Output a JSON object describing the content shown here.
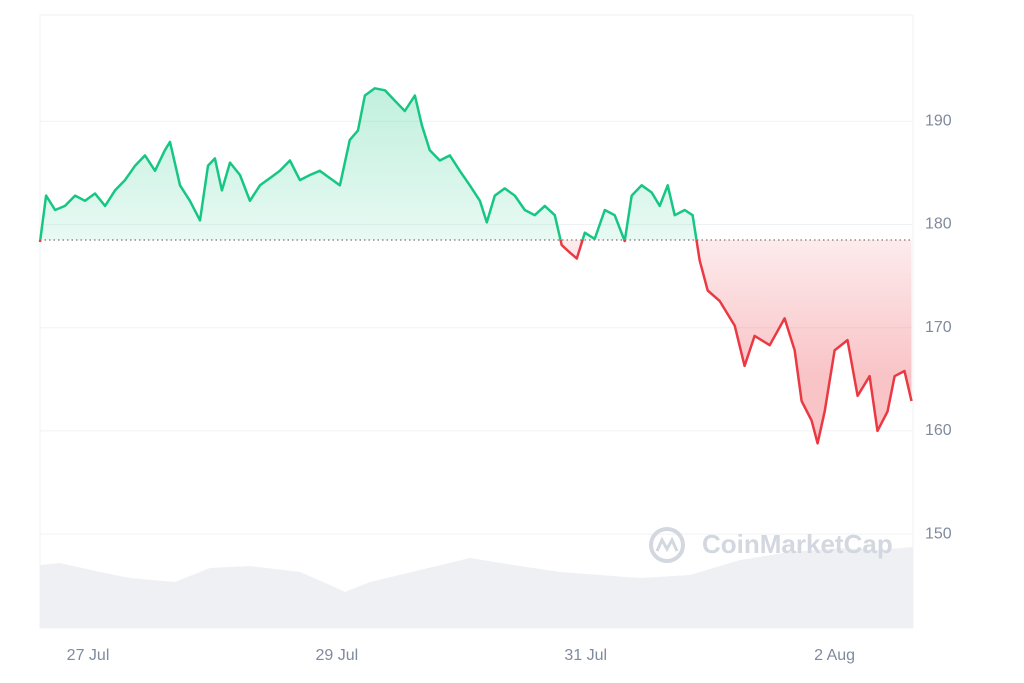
{
  "chart_data": {
    "type": "line",
    "watermark": "CoinMarketCap",
    "up_color": "#16c784",
    "down_color": "#ea3943",
    "baseline": 178.5,
    "grid": true,
    "xlim": [
      -0.386,
      6.63
    ],
    "xticks": [
      {
        "value": 0,
        "label": "27 Jul"
      },
      {
        "value": 2,
        "label": "29 Jul"
      },
      {
        "value": 4,
        "label": "31 Jul"
      },
      {
        "value": 6,
        "label": "2 Aug"
      }
    ],
    "ylim": [
      140.9,
      200.3
    ],
    "yticks": [
      150,
      160,
      170,
      180,
      190
    ],
    "x": [
      -0.386,
      -0.337,
      -0.265,
      -0.185,
      -0.104,
      -0.024,
      0.056,
      0.137,
      0.217,
      0.297,
      0.378,
      0.458,
      0.538,
      0.618,
      0.659,
      0.739,
      0.819,
      0.9,
      0.964,
      1.02,
      1.076,
      1.141,
      1.221,
      1.301,
      1.382,
      1.462,
      1.542,
      1.622,
      1.703,
      1.783,
      1.863,
      1.944,
      2.024,
      2.104,
      2.169,
      2.225,
      2.305,
      2.386,
      2.466,
      2.546,
      2.627,
      2.683,
      2.747,
      2.827,
      2.908,
      2.988,
      3.068,
      3.149,
      3.205,
      3.269,
      3.349,
      3.43,
      3.51,
      3.59,
      3.671,
      3.751,
      3.807,
      3.871,
      3.928,
      3.992,
      4.072,
      4.153,
      4.233,
      4.313,
      4.369,
      4.45,
      4.53,
      4.594,
      4.659,
      4.715,
      4.795,
      4.859,
      4.916,
      4.98,
      5.076,
      5.197,
      5.277,
      5.357,
      5.478,
      5.598,
      5.679,
      5.735,
      5.815,
      5.863,
      5.92,
      6.0,
      6.104,
      6.185,
      6.281,
      6.345,
      6.426,
      6.482,
      6.562,
      6.618
    ],
    "values": [
      178.3,
      182.8,
      181.4,
      181.8,
      182.8,
      182.3,
      183.0,
      181.8,
      183.3,
      184.3,
      185.7,
      186.7,
      185.2,
      187.2,
      188.0,
      183.8,
      182.3,
      180.4,
      185.7,
      186.4,
      183.3,
      186.0,
      184.8,
      182.3,
      183.8,
      184.5,
      185.2,
      186.2,
      184.3,
      184.8,
      185.2,
      184.5,
      183.8,
      188.2,
      189.1,
      192.5,
      193.2,
      193.0,
      192.0,
      191.0,
      192.5,
      189.6,
      187.2,
      186.2,
      186.7,
      185.2,
      183.8,
      182.3,
      180.2,
      182.8,
      183.5,
      182.8,
      181.4,
      180.9,
      181.8,
      180.9,
      178.0,
      177.3,
      176.7,
      179.2,
      178.6,
      181.4,
      180.9,
      178.4,
      182.8,
      183.8,
      183.1,
      181.8,
      183.8,
      180.9,
      181.4,
      180.9,
      176.5,
      173.6,
      172.6,
      170.2,
      166.3,
      169.2,
      168.3,
      170.9,
      167.8,
      162.9,
      161.0,
      158.8,
      161.9,
      167.8,
      168.8,
      163.4,
      165.3,
      160.0,
      161.9,
      165.3,
      165.8,
      162.9
    ]
  }
}
